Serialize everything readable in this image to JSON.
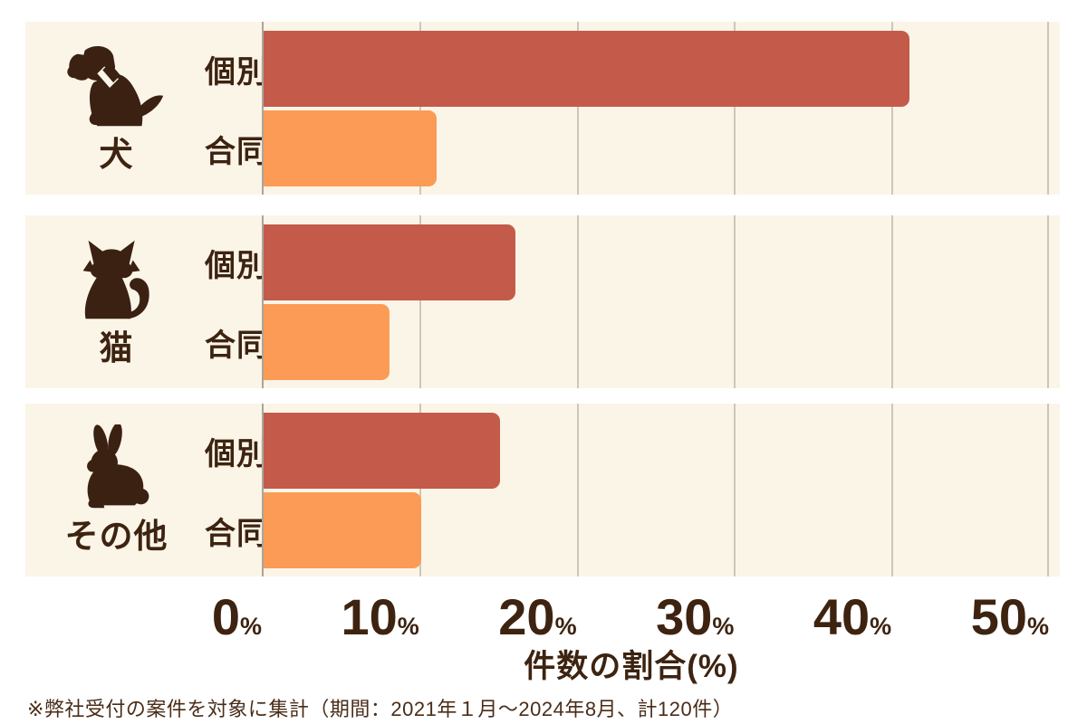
{
  "chart_data": {
    "type": "bar",
    "orientation": "horizontal",
    "xlabel": "件数の割合(%)",
    "xlim": [
      0,
      50
    ],
    "x_ticks": [
      "0",
      "10",
      "20",
      "30",
      "40",
      "50"
    ],
    "tick_suffix": "%",
    "grid": true,
    "legend_position": "none",
    "series_colors": {
      "individual": "#c45b4a",
      "joint": "#fb9b55"
    },
    "panel_background": "#fbf5e8",
    "gridline_color": "#cdc7ba",
    "text_color": "#3d2310",
    "groups": [
      {
        "category": "犬",
        "icon": "dog",
        "bars": [
          {
            "label": "個別",
            "value": 41
          },
          {
            "label": "合同",
            "value": 11
          }
        ]
      },
      {
        "category": "猫",
        "icon": "cat",
        "bars": [
          {
            "label": "個別",
            "value": 16
          },
          {
            "label": "合同",
            "value": 8
          }
        ]
      },
      {
        "category": "その他",
        "icon": "rabbit",
        "bars": [
          {
            "label": "個別",
            "value": 15
          },
          {
            "label": "合同",
            "value": 10
          }
        ]
      }
    ],
    "footnote": "※弊社受付の案件を対象に集計（期間：2021年１月～2024年8月、計120件）"
  }
}
